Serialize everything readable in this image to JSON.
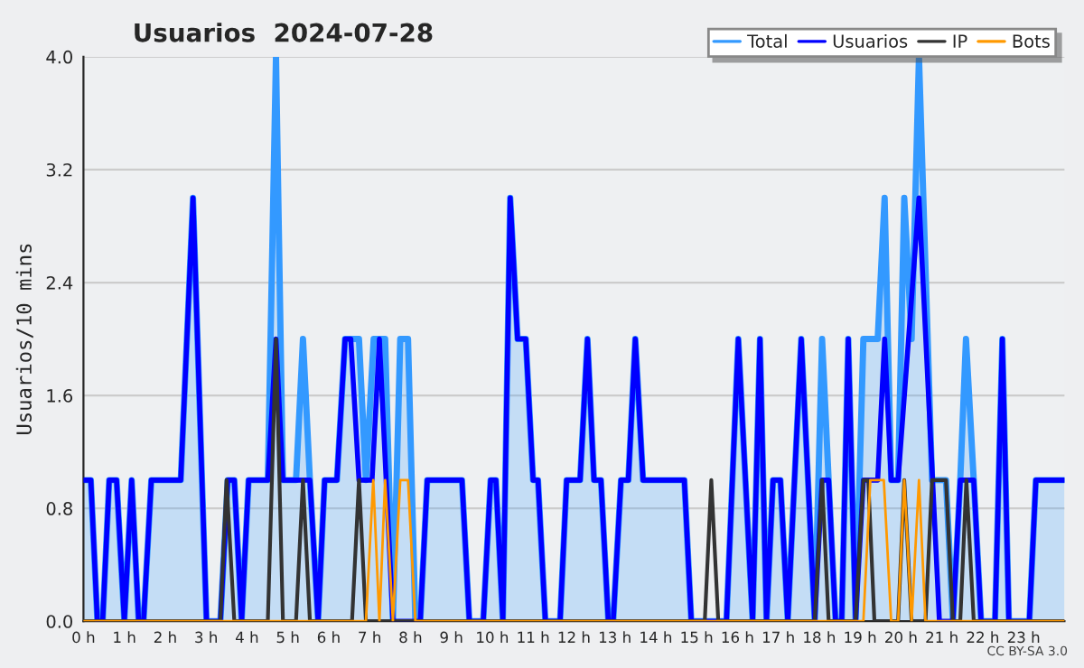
{
  "chart_data": {
    "type": "line",
    "title": "Usuarios  2024-07-28",
    "ylabel": "Usuarios/10 mins",
    "xlim": [
      0,
      24
    ],
    "xticks": [
      {
        "value": 0,
        "label": "0 h"
      },
      {
        "value": 1,
        "label": "1 h"
      },
      {
        "value": 2,
        "label": "2 h"
      },
      {
        "value": 3,
        "label": "3 h"
      },
      {
        "value": 4,
        "label": "4 h"
      },
      {
        "value": 5,
        "label": "5 h"
      },
      {
        "value": 6,
        "label": "6 h"
      },
      {
        "value": 7,
        "label": "7 h"
      },
      {
        "value": 8,
        "label": "8 h"
      },
      {
        "value": 9,
        "label": "9 h"
      },
      {
        "value": 10,
        "label": "10 h"
      },
      {
        "value": 11,
        "label": "11 h"
      },
      {
        "value": 12,
        "label": "12 h"
      },
      {
        "value": 13,
        "label": "13 h"
      },
      {
        "value": 14,
        "label": "14 h"
      },
      {
        "value": 15,
        "label": "15 h"
      },
      {
        "value": 16,
        "label": "16 h"
      },
      {
        "value": 17,
        "label": "17 h"
      },
      {
        "value": 18,
        "label": "18 h"
      },
      {
        "value": 19,
        "label": "19 h"
      },
      {
        "value": 20,
        "label": "20 h"
      },
      {
        "value": 21,
        "label": "21 h"
      },
      {
        "value": 22,
        "label": "22 h"
      },
      {
        "value": 23,
        "label": "23 h"
      }
    ],
    "ylim": [
      0,
      4
    ],
    "yticks": [
      {
        "value": 0,
        "label": "0.0"
      },
      {
        "value": 0.8,
        "label": "0.8"
      },
      {
        "value": 1.6,
        "label": "1.6"
      },
      {
        "value": 2.4,
        "label": "2.4"
      },
      {
        "value": 3.2,
        "label": "3.2"
      },
      {
        "value": 4,
        "label": "4.0"
      }
    ],
    "grid": "y",
    "legend": "top right",
    "marker": "none",
    "line_style": "solid",
    "annotations": [
      "CC BY-SA 3.0"
    ],
    "series": [
      {
        "name": "Total",
        "type": "area",
        "color": "#3399ff",
        "x": [
          0,
          0.18,
          0.34,
          0.47,
          0.63,
          0.81,
          1.0,
          1.18,
          1.35,
          1.47,
          1.66,
          2.38,
          2.68,
          3.01,
          3.35,
          3.53,
          3.69,
          3.87,
          4.04,
          4.51,
          4.71,
          4.88,
          5.2,
          5.37,
          5.54,
          5.74,
          5.9,
          6.2,
          6.4,
          6.74,
          6.91,
          7.1,
          7.38,
          7.57,
          7.75,
          7.94,
          8.12,
          8.24,
          8.41,
          9.26,
          9.44,
          9.78,
          9.96,
          10.09,
          10.26,
          10.44,
          10.62,
          10.82,
          11.0,
          11.12,
          11.3,
          11.66,
          11.82,
          12.15,
          12.33,
          12.49,
          12.66,
          12.84,
          12.96,
          13.15,
          13.33,
          13.5,
          13.69,
          14.7,
          14.87,
          15.73,
          16.02,
          16.37,
          16.55,
          16.71,
          16.87,
          17.05,
          17.23,
          17.56,
          17.89,
          18.07,
          18.23,
          18.4,
          18.55,
          18.71,
          18.89,
          19.08,
          19.43,
          19.6,
          19.76,
          19.93,
          20.08,
          20.26,
          20.44,
          20.76,
          21.1,
          21.27,
          21.45,
          21.59,
          21.78,
          21.96,
          22.3,
          22.48,
          22.64,
          23.14,
          23.3,
          24
        ],
        "values": [
          1,
          1,
          0,
          0,
          1,
          1,
          0,
          1,
          0,
          0,
          1,
          1,
          3,
          0,
          0,
          1,
          1,
          0,
          1,
          1,
          4,
          1,
          1,
          2,
          1,
          0,
          1,
          1,
          2,
          2,
          1,
          2,
          2,
          0,
          2,
          2,
          0,
          0,
          1,
          1,
          0,
          0,
          1,
          1,
          0,
          3,
          2,
          2,
          1,
          1,
          0,
          0,
          1,
          1,
          2,
          1,
          1,
          0,
          0,
          1,
          1,
          2,
          1,
          1,
          0,
          0,
          2,
          0,
          2,
          0,
          1,
          1,
          0,
          2,
          0,
          2,
          1,
          0,
          0,
          2,
          0,
          2,
          2,
          3,
          1,
          1,
          3,
          2,
          4,
          1,
          1,
          0,
          1,
          2,
          1,
          0,
          0,
          2,
          0,
          0,
          1,
          1
        ]
      },
      {
        "name": "Usuarios",
        "color": "#0000ff",
        "x": [
          0,
          0.18,
          0.34,
          0.47,
          0.63,
          0.81,
          1.0,
          1.18,
          1.35,
          1.47,
          1.66,
          2.38,
          2.68,
          3.01,
          3.35,
          3.53,
          3.69,
          3.87,
          4.04,
          4.51,
          4.71,
          4.88,
          5.54,
          5.74,
          5.9,
          6.2,
          6.4,
          6.54,
          6.74,
          7.06,
          7.24,
          7.57,
          8.24,
          8.41,
          9.26,
          9.44,
          9.78,
          9.96,
          10.09,
          10.26,
          10.44,
          10.62,
          10.82,
          11.0,
          11.12,
          11.3,
          11.66,
          11.82,
          12.15,
          12.33,
          12.49,
          12.66,
          12.84,
          12.96,
          13.15,
          13.33,
          13.5,
          13.69,
          14.7,
          14.87,
          15.73,
          16.02,
          16.37,
          16.55,
          16.71,
          16.87,
          17.05,
          17.23,
          17.56,
          17.89,
          18.07,
          18.23,
          18.4,
          18.55,
          18.71,
          18.89,
          19.08,
          19.43,
          19.6,
          19.76,
          19.93,
          20.44,
          20.94,
          21.27,
          21.45,
          21.78,
          21.96,
          22.3,
          22.48,
          22.64,
          23.14,
          23.3,
          24
        ],
        "values": [
          1,
          1,
          0,
          0,
          1,
          1,
          0,
          1,
          0,
          0,
          1,
          1,
          3,
          0,
          0,
          1,
          1,
          0,
          1,
          1,
          2,
          1,
          1,
          0,
          1,
          1,
          2,
          2,
          1,
          1,
          2,
          0,
          0,
          1,
          1,
          0,
          0,
          1,
          1,
          0,
          3,
          2,
          2,
          1,
          1,
          0,
          0,
          1,
          1,
          2,
          1,
          1,
          0,
          0,
          1,
          1,
          2,
          1,
          1,
          0,
          0,
          2,
          0,
          2,
          0,
          1,
          1,
          0,
          2,
          0,
          1,
          1,
          0,
          0,
          2,
          0,
          1,
          1,
          2,
          1,
          1,
          3,
          0,
          0,
          1,
          1,
          0,
          0,
          2,
          0,
          0,
          1,
          1
        ]
      },
      {
        "name": "IP",
        "color": "#333333",
        "x": [
          0,
          3.35,
          3.5,
          3.69,
          4.51,
          4.71,
          4.88,
          5.2,
          5.37,
          5.54,
          6.57,
          6.74,
          6.91,
          15.2,
          15.36,
          15.53,
          17.89,
          18.07,
          18.23,
          18.89,
          19.08,
          19.2,
          19.35,
          19.93,
          20.08,
          20.26,
          20.6,
          20.76,
          21.1,
          21.27,
          21.45,
          21.6,
          21.78,
          24
        ],
        "values": [
          0,
          0,
          1,
          0,
          0,
          2,
          0,
          0,
          1,
          0,
          0,
          1,
          0,
          0,
          1,
          0,
          0,
          1,
          0,
          0,
          1,
          1,
          0,
          0,
          1,
          0,
          0,
          1,
          1,
          0,
          0,
          1,
          0,
          0
        ]
      },
      {
        "name": "Bots",
        "color": "#ff9900",
        "x": [
          0,
          6.91,
          7.09,
          7.24,
          7.38,
          7.57,
          7.75,
          7.94,
          8.12,
          19.08,
          19.25,
          19.58,
          19.76,
          19.93,
          20.08,
          20.26,
          20.44,
          20.6,
          24
        ],
        "values": [
          0,
          0,
          1,
          0,
          1,
          0,
          1,
          1,
          0,
          0,
          1,
          1,
          0,
          0,
          1,
          0,
          1,
          0,
          0
        ]
      }
    ]
  }
}
